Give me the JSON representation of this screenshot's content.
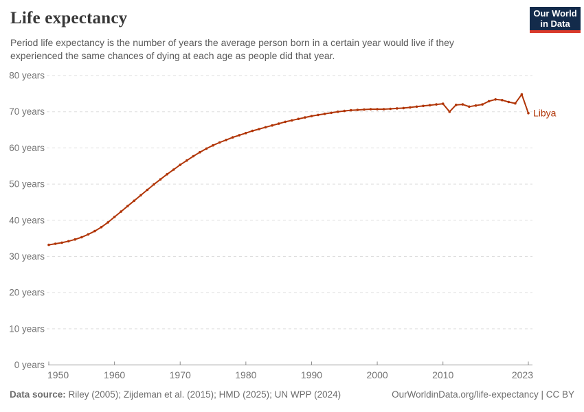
{
  "header": {
    "title": "Life expectancy",
    "subtitle": "Period life expectancy is the number of years the average person born in a certain year would live if they experienced the same chances of dying at each age as people did that year."
  },
  "logo": {
    "line1": "Our World",
    "line2": "in Data",
    "bg_color": "#132b4b",
    "accent_color": "#d93a2b"
  },
  "footer": {
    "source_label": "Data source:",
    "source_text": " Riley (2005); Zijdeman et al. (2015); HMD (2025); UN WPP (2024)",
    "attribution": "OurWorldinData.org/life-expectancy | CC BY"
  },
  "chart_data": {
    "type": "line",
    "title": "Life expectancy",
    "entity": "Libya",
    "line_color": "#b13507",
    "grid": "horizontal dashed",
    "xlim": [
      1950,
      2023
    ],
    "ylim": [
      0,
      80
    ],
    "x_ticks": [
      1950,
      1960,
      1970,
      1980,
      1990,
      2000,
      2010,
      2023
    ],
    "y_ticks": [
      0,
      10,
      20,
      30,
      40,
      50,
      60,
      70,
      80
    ],
    "y_tick_suffix": " years",
    "series": [
      {
        "name": "Libya",
        "x": [
          1950,
          1951,
          1952,
          1953,
          1954,
          1955,
          1956,
          1957,
          1958,
          1959,
          1960,
          1961,
          1962,
          1963,
          1964,
          1965,
          1966,
          1967,
          1968,
          1969,
          1970,
          1971,
          1972,
          1973,
          1974,
          1975,
          1976,
          1977,
          1978,
          1979,
          1980,
          1981,
          1982,
          1983,
          1984,
          1985,
          1986,
          1987,
          1988,
          1989,
          1990,
          1991,
          1992,
          1993,
          1994,
          1995,
          1996,
          1997,
          1998,
          1999,
          2000,
          2001,
          2002,
          2003,
          2004,
          2005,
          2006,
          2007,
          2008,
          2009,
          2010,
          2011,
          2012,
          2013,
          2014,
          2015,
          2016,
          2017,
          2018,
          2019,
          2020,
          2021,
          2022,
          2023
        ],
        "values": [
          33.2,
          33.5,
          33.8,
          34.2,
          34.7,
          35.3,
          36.1,
          37.0,
          38.1,
          39.4,
          40.9,
          42.4,
          43.9,
          45.4,
          46.9,
          48.4,
          49.9,
          51.3,
          52.7,
          54.0,
          55.3,
          56.5,
          57.7,
          58.8,
          59.8,
          60.7,
          61.5,
          62.2,
          62.9,
          63.5,
          64.1,
          64.7,
          65.2,
          65.7,
          66.2,
          66.7,
          67.2,
          67.6,
          68.0,
          68.4,
          68.8,
          69.1,
          69.4,
          69.7,
          70.0,
          70.2,
          70.4,
          70.5,
          70.6,
          70.7,
          70.7,
          70.7,
          70.8,
          70.9,
          71.0,
          71.2,
          71.4,
          71.6,
          71.8,
          72.0,
          72.2,
          70.0,
          71.9,
          72.0,
          71.4,
          71.7,
          72.0,
          72.9,
          73.4,
          73.2,
          72.7,
          72.3,
          74.8,
          69.6
        ]
      }
    ]
  },
  "colors": {
    "axis_text": "#737373",
    "gridline": "#dedede",
    "axis_line": "#8f8f8f"
  }
}
